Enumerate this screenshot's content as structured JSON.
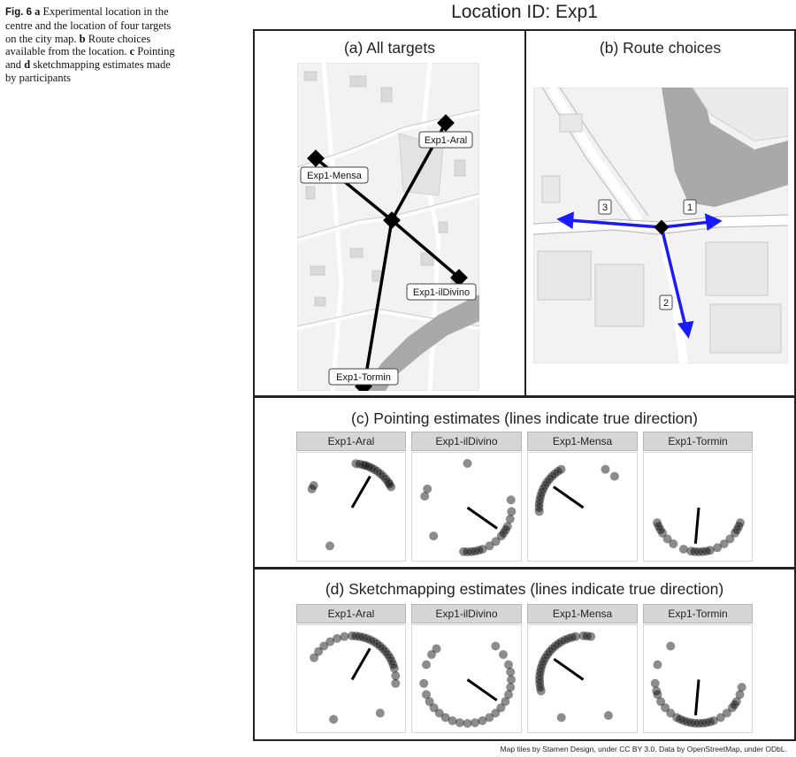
{
  "caption": {
    "fig_label": "Fig. 6",
    "a_letter": "a",
    "a_text": " Experimental location in the centre and the location of four targets on the city map. ",
    "b_letter": "b",
    "b_text": " Route choices available from the location. ",
    "c_letter": "c",
    "c_text": " Pointing and ",
    "d_letter": "d",
    "d_text": " sketchmapping estimates made by participants"
  },
  "figure": {
    "main_title": "Location ID: Exp1",
    "panel_a": {
      "title": "(a) All targets",
      "targets": [
        "Exp1-Aral",
        "Exp1-Mensa",
        "Exp1-ilDivino",
        "Exp1-Tormin"
      ]
    },
    "panel_b": {
      "title": "(b) Route choices",
      "routes": [
        "1",
        "2",
        "3"
      ]
    },
    "panel_c": {
      "title": "(c) Pointing estimates (lines indicate true direction)",
      "facets": [
        "Exp1-Aral",
        "Exp1-ilDivino",
        "Exp1-Mensa",
        "Exp1-Tormin"
      ]
    },
    "panel_d": {
      "title": "(d) Sketchmapping estimates (lines indicate true direction)",
      "facets": [
        "Exp1-Aral",
        "Exp1-ilDivino",
        "Exp1-Mensa",
        "Exp1-Tormin"
      ]
    },
    "credit": "Map tiles by Stamen Design, under CC BY 3.0. Data by OpenStreetMap, under ODbL."
  },
  "colors": {
    "route_arrow": "#1a1aff",
    "marker": "#000000",
    "water": "#a9a9a9",
    "map_bg": "#f2f2f2",
    "strip_bg": "#d6d6d6"
  },
  "chart_data": [
    {
      "type": "scatter",
      "title": "(c) Pointing estimates (lines indicate true direction)",
      "coordinate_system": "polar",
      "facets": [
        {
          "name": "Exp1-Aral",
          "true_direction_deg": 30,
          "estimates_deg": [
            5,
            10,
            15,
            18,
            22,
            26,
            30,
            35,
            40,
            45,
            50,
            55,
            58,
            62,
            295,
            300,
            210
          ]
        },
        {
          "name": "Exp1-ilDivino",
          "true_direction_deg": 125,
          "estimates_deg": [
            80,
            95,
            105,
            115,
            120,
            125,
            130,
            140,
            150,
            160,
            165,
            170,
            175,
            180,
            185,
            230,
            285,
            295,
            0
          ]
        },
        {
          "name": "Exp1-Mensa",
          "true_direction_deg": 305,
          "estimates_deg": [
            265,
            270,
            275,
            280,
            285,
            290,
            295,
            300,
            305,
            310,
            315,
            320,
            325,
            330,
            30,
            45
          ]
        },
        {
          "name": "Exp1-Tormin",
          "true_direction_deg": 185,
          "estimates_deg": [
            110,
            115,
            120,
            125,
            135,
            145,
            155,
            165,
            170,
            175,
            180,
            185,
            190,
            200,
            215,
            225,
            235,
            240,
            245,
            250
          ]
        }
      ]
    },
    {
      "type": "scatter",
      "title": "(d) Sketchmapping estimates (lines indicate true direction)",
      "coordinate_system": "polar",
      "facets": [
        {
          "name": "Exp1-Aral",
          "true_direction_deg": 30,
          "estimates_deg": [
            300,
            310,
            320,
            330,
            340,
            350,
            0,
            5,
            10,
            15,
            20,
            25,
            30,
            35,
            40,
            45,
            50,
            55,
            60,
            65,
            70,
            75,
            85,
            95,
            140,
            205
          ]
        },
        {
          "name": "Exp1-ilDivino",
          "true_direction_deg": 125,
          "estimates_deg": [
            40,
            55,
            70,
            80,
            90,
            100,
            110,
            120,
            130,
            140,
            150,
            160,
            170,
            180,
            190,
            200,
            210,
            220,
            230,
            240,
            250,
            265,
            290,
            305,
            315
          ]
        },
        {
          "name": "Exp1-Mensa",
          "true_direction_deg": 305,
          "estimates_deg": [
            255,
            260,
            265,
            270,
            275,
            280,
            285,
            290,
            295,
            300,
            305,
            310,
            315,
            320,
            325,
            330,
            335,
            340,
            345,
            350,
            0,
            5,
            10,
            145,
            210
          ]
        },
        {
          "name": "Exp1-Tormin",
          "true_direction_deg": 185,
          "estimates_deg": [
            100,
            110,
            120,
            125,
            130,
            140,
            150,
            160,
            165,
            170,
            175,
            180,
            185,
            190,
            195,
            200,
            205,
            210,
            220,
            230,
            240,
            250,
            255,
            265,
            290,
            320
          ]
        }
      ]
    }
  ]
}
